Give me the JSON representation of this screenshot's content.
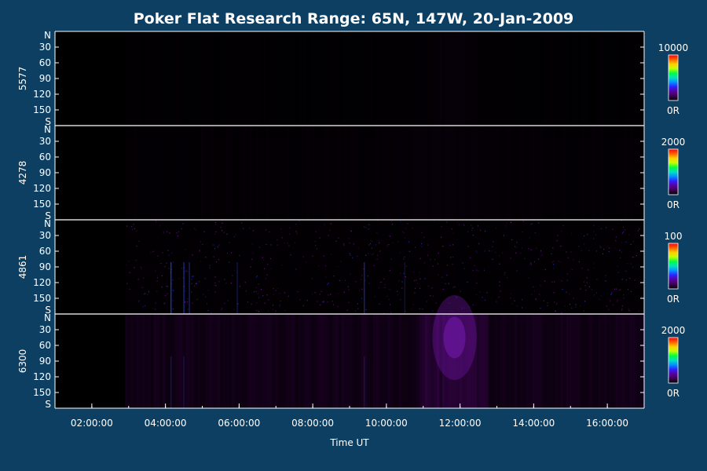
{
  "chart_data": {
    "type": "heatmap",
    "title": "Poker Flat Research Range: 65N, 147W, 20-Jan-2009",
    "xlabel": "Time UT",
    "x_ticks": [
      "02:00:00",
      "04:00:00",
      "06:00:00",
      "08:00:00",
      "10:00:00",
      "12:00:00",
      "14:00:00",
      "16:00:00"
    ],
    "x_range_hours": [
      1.0,
      17.0
    ],
    "y_axis": {
      "tick_labels": [
        "N",
        "30",
        "60",
        "90",
        "120",
        "150",
        "S"
      ],
      "range_deg": [
        0,
        180
      ]
    },
    "panels": [
      {
        "name": "5577",
        "colorbar_max": "10000",
        "colorbar_min": "0R",
        "data_start_hour": 2.9,
        "background_intensity": 0.04,
        "features": [
          {
            "kind": "patch",
            "t_center": 11.8,
            "t_width": 1.6,
            "intensity": 0.08
          }
        ]
      },
      {
        "name": "4278",
        "colorbar_max": "2000",
        "colorbar_min": "0R",
        "data_start_hour": 2.9,
        "background_intensity": 0.07,
        "features": [
          {
            "kind": "patch",
            "t_center": 11.5,
            "t_width": 3.0,
            "intensity": 0.05
          }
        ]
      },
      {
        "name": "4861",
        "colorbar_max": "100",
        "colorbar_min": "0R",
        "data_start_hour": 2.9,
        "background_intensity": 0.05,
        "noise": "speckle",
        "features": [
          {
            "kind": "streak",
            "t": 4.15,
            "intensity": 0.6
          },
          {
            "kind": "streak",
            "t": 4.5,
            "intensity": 0.45
          },
          {
            "kind": "streak",
            "t": 4.65,
            "intensity": 0.35
          },
          {
            "kind": "streak",
            "t": 5.95,
            "intensity": 0.25
          },
          {
            "kind": "streak",
            "t": 9.4,
            "intensity": 0.4
          },
          {
            "kind": "streak",
            "t": 10.5,
            "intensity": 0.2
          }
        ]
      },
      {
        "name": "6300",
        "colorbar_max": "2000",
        "colorbar_min": "0R",
        "data_start_hour": 2.9,
        "background_intensity": 0.22,
        "features": [
          {
            "kind": "glow",
            "t_center": 11.85,
            "lat_center": 45,
            "t_width": 1.2,
            "intensity": 0.5
          },
          {
            "kind": "band",
            "t_start": 10.9,
            "t_end": 12.8,
            "intensity": 0.12
          },
          {
            "kind": "streak",
            "t": 4.15,
            "intensity": 0.25
          },
          {
            "kind": "streak",
            "t": 4.5,
            "intensity": 0.2
          },
          {
            "kind": "streak",
            "t": 9.4,
            "intensity": 0.2
          }
        ]
      }
    ],
    "colormap": [
      "#000000",
      "#3c0050",
      "#5a00a0",
      "#3020ff",
      "#0090ff",
      "#00e0c0",
      "#00ff40",
      "#c0ff00",
      "#ffd000",
      "#ff6000",
      "#ff0000"
    ],
    "grid": false
  }
}
